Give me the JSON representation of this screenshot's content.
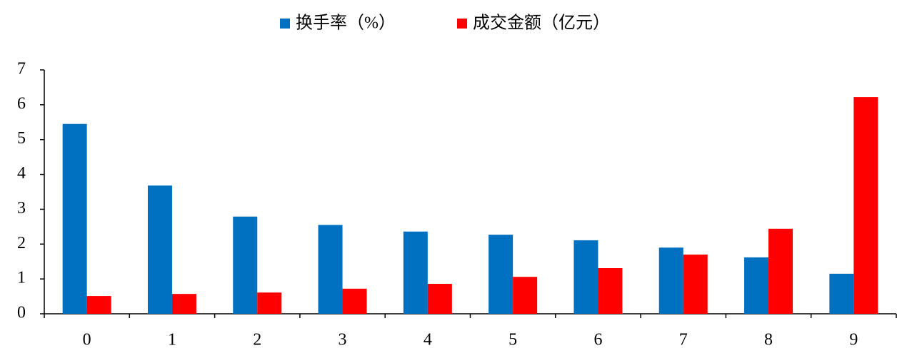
{
  "chart_data": {
    "type": "bar",
    "categories": [
      "0",
      "1",
      "2",
      "3",
      "4",
      "5",
      "6",
      "7",
      "8",
      "9"
    ],
    "series": [
      {
        "name": "换手率（%）",
        "color": "#0070c0",
        "values": [
          5.45,
          3.68,
          2.79,
          2.55,
          2.36,
          2.27,
          2.11,
          1.9,
          1.62,
          1.15
        ]
      },
      {
        "name": "成交金额（亿元）",
        "color": "#ff0000",
        "values": [
          0.51,
          0.57,
          0.61,
          0.72,
          0.86,
          1.06,
          1.31,
          1.7,
          2.44,
          6.22
        ]
      }
    ],
    "ylim": [
      0,
      7
    ],
    "yticks": [
      0,
      1,
      2,
      3,
      4,
      5,
      6,
      7
    ],
    "grid": false,
    "legend": "top"
  }
}
